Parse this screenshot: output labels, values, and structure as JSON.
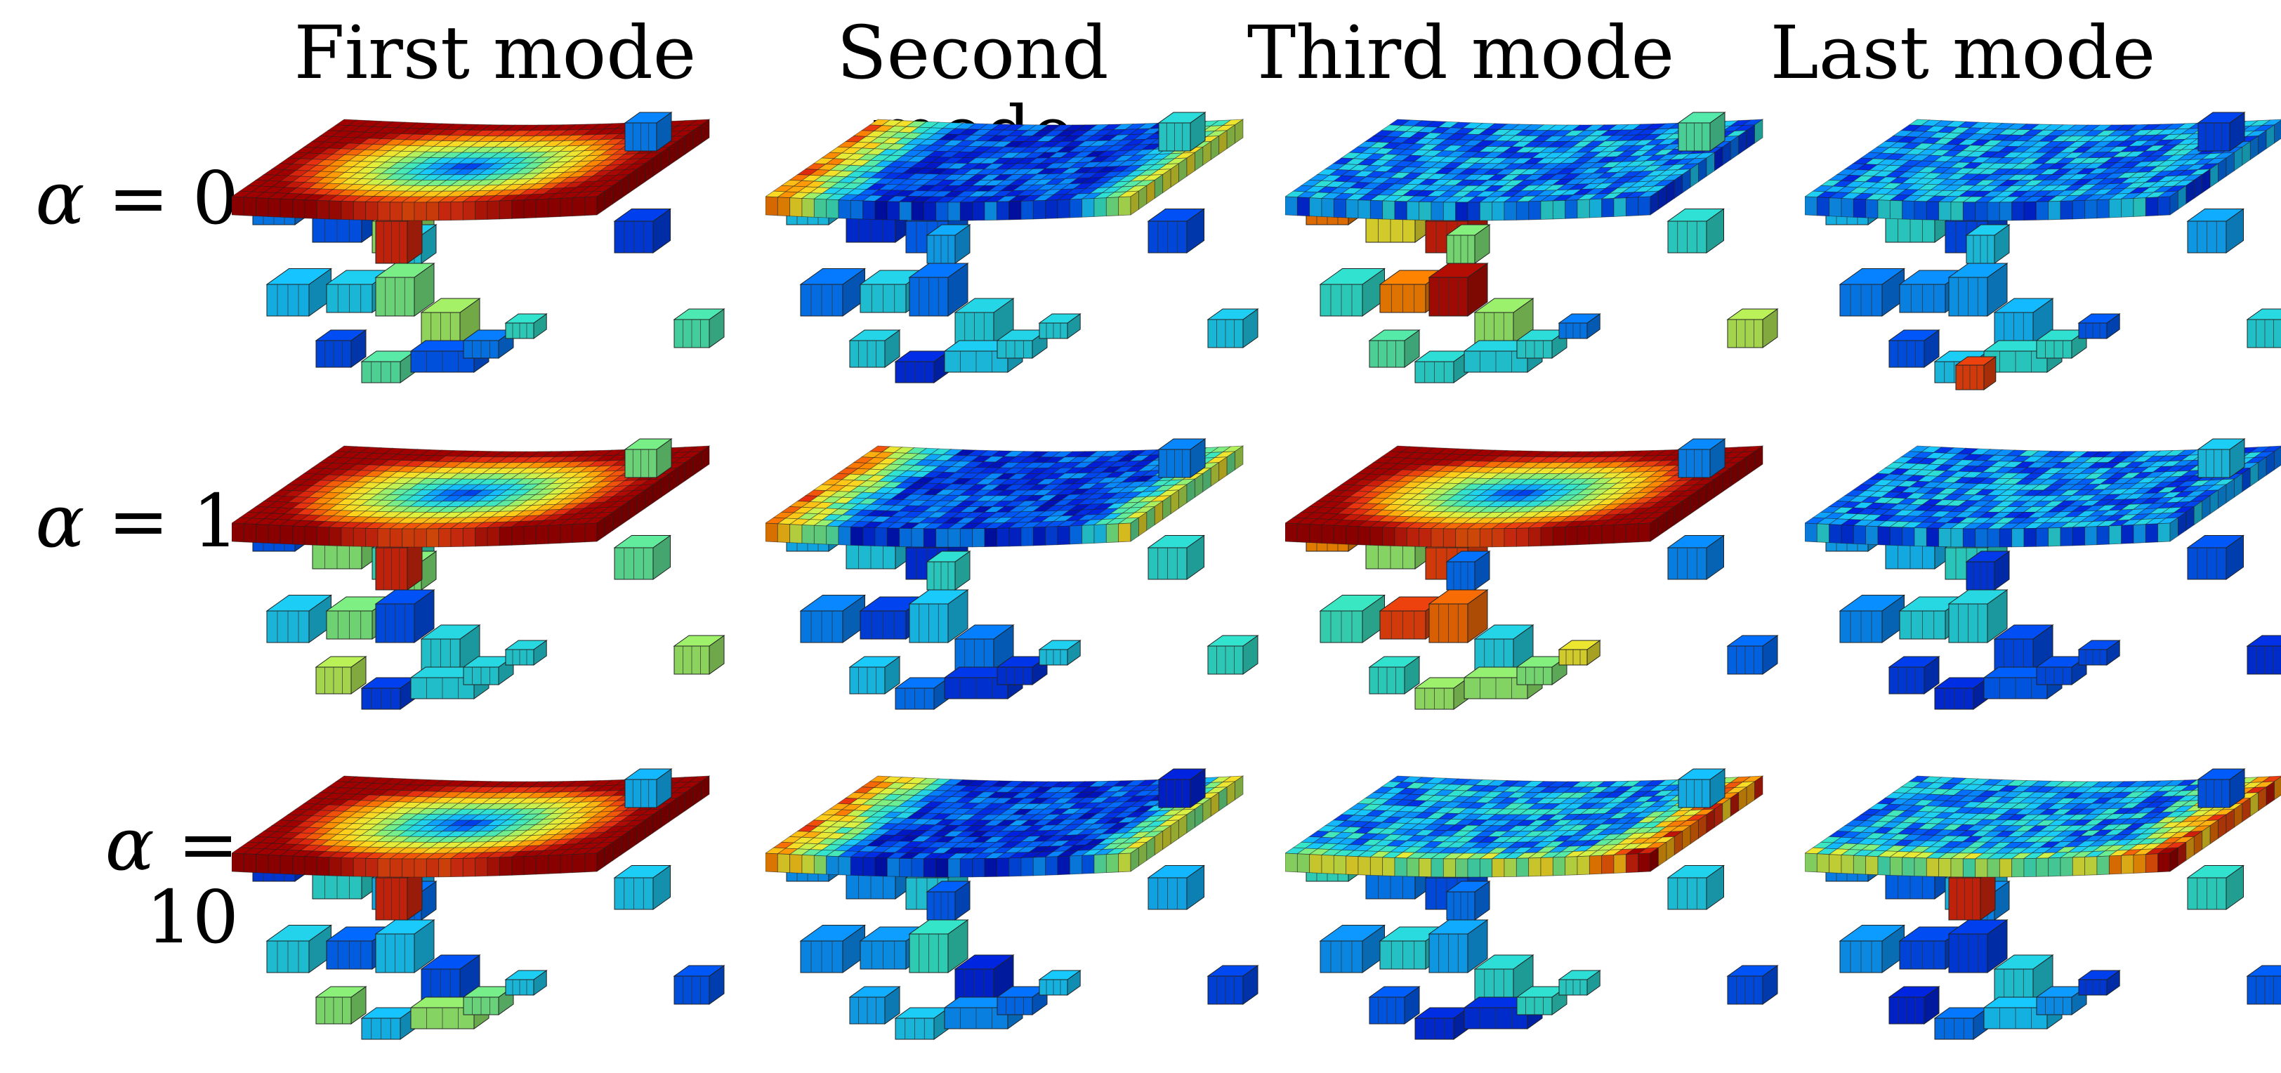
{
  "column_titles": [
    "First mode",
    "Second mode",
    "Third mode",
    "Last mode"
  ],
  "row_labels": [
    {
      "symbol": "α",
      "relation": "= 0"
    },
    {
      "symbol": "α",
      "relation": "= 1"
    },
    {
      "symbol": "α",
      "relation": "= 10"
    }
  ],
  "colormap": [
    "#00008f",
    "#0022e0",
    "#0066ff",
    "#17c8ff",
    "#35e6c8",
    "#86f07a",
    "#dff13f",
    "#ffd71f",
    "#ff8a00",
    "#e83010",
    "#a00000"
  ],
  "panels": [
    {
      "row": 0,
      "col": 0,
      "plate": "center-blue-red-corners",
      "parts": "mixed-cool",
      "hot_part": "column"
    },
    {
      "row": 0,
      "col": 1,
      "plate": "blue-red-edge",
      "parts": "blue-teal"
    },
    {
      "row": 0,
      "col": 2,
      "plate": "noisy-blue",
      "parts": "red-hot"
    },
    {
      "row": 0,
      "col": 3,
      "plate": "noisy-blue",
      "parts": "blue-teal",
      "hot_part": "small"
    },
    {
      "row": 1,
      "col": 0,
      "plate": "center-blue-red-corners",
      "parts": "mixed-cool",
      "hot_part": "column"
    },
    {
      "row": 1,
      "col": 1,
      "plate": "blue-red-edge",
      "parts": "blue-teal"
    },
    {
      "row": 1,
      "col": 2,
      "plate": "center-blue-red-corners",
      "parts": "red-hot"
    },
    {
      "row": 1,
      "col": 3,
      "plate": "noisy-blue",
      "parts": "blue-teal"
    },
    {
      "row": 2,
      "col": 0,
      "plate": "center-blue-red-corners",
      "parts": "mixed-cool",
      "hot_part": "column"
    },
    {
      "row": 2,
      "col": 1,
      "plate": "blue-red-edge",
      "parts": "blue-teal"
    },
    {
      "row": 2,
      "col": 2,
      "plate": "noisy-blue-warm-edge",
      "parts": "blue-teal"
    },
    {
      "row": 2,
      "col": 3,
      "plate": "noisy-blue-warm-edge",
      "parts": "blue-teal",
      "hot_part": "column"
    }
  ]
}
